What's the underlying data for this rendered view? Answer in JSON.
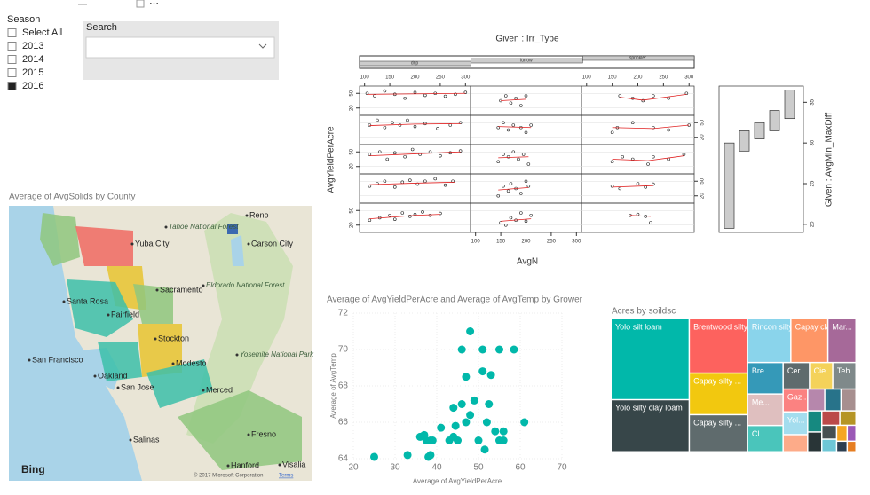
{
  "slicer": {
    "title": "Season",
    "items": [
      "Select All",
      "2013",
      "2014",
      "2015",
      "2016"
    ],
    "selected": [
      false,
      false,
      false,
      false,
      true
    ],
    "search": "Search"
  },
  "map": {
    "title": "Average of AvgSolids by County",
    "labels": [
      "Reno",
      "Tahoe National Forest",
      "Yuba City",
      "Carson City",
      "Sacramento",
      "Eldorado National Forest",
      "Santa Rosa",
      "Fairfield",
      "Stockton",
      "Yosemite National Park",
      "San Francisco",
      "Oakland",
      "Modesto",
      "San Jose",
      "Merced",
      "Salinas",
      "Fresno",
      "Hanford",
      "Visalia"
    ],
    "logo": "Bing",
    "attribution": "© 2017 Microsoft Corporation",
    "terms": "Terms"
  },
  "chart_data": [
    {
      "type": "scatter",
      "title": "Average of AvgYieldPerAcre and Average of AvgTemp by Grower",
      "xlabel": "Average of AvgYieldPerAcre",
      "ylabel": "Average of AvgTemp",
      "color": "#01b8aa",
      "xlim": [
        20,
        70
      ],
      "xticks": [
        20,
        30,
        40,
        50,
        60,
        70
      ],
      "ylim": [
        64,
        72
      ],
      "yticks": [
        64,
        66,
        68,
        70,
        72
      ],
      "x": [
        25,
        33,
        38,
        38.5,
        36,
        37.5,
        38.5,
        39,
        37,
        41,
        43,
        44,
        44.5,
        44,
        45,
        46,
        47,
        47,
        48,
        49,
        50,
        51,
        51,
        51.5,
        52,
        52.5,
        53,
        54,
        55,
        55,
        56,
        56,
        58.5,
        61,
        46,
        48
      ],
      "y": [
        64.1,
        64.2,
        64.1,
        64.2,
        65.2,
        65,
        65,
        65,
        65.3,
        65.7,
        65,
        65.2,
        65.8,
        66.8,
        65,
        67,
        66,
        68.5,
        71,
        67.2,
        65,
        68.8,
        70,
        64.5,
        66,
        67,
        68.6,
        65.5,
        70,
        65,
        65,
        65.5,
        70,
        66,
        70,
        66.4
      ]
    },
    {
      "type": "treemap",
      "title": "Acres by soildsc",
      "categories": [
        "Yolo silt loam",
        "Yolo silty clay loam",
        "Brentwood silty clay...",
        "Capay silty ...",
        "Capay silty ...",
        "Rincon silty...",
        "Capay clay",
        "Mar...",
        "Bre...",
        "Me...",
        "Cl...",
        "Cer...",
        "Cie...",
        "Teh...",
        "Gaz...",
        "Yol...",
        null,
        null,
        null,
        null,
        null,
        null,
        null,
        null,
        null,
        null,
        null,
        null,
        null,
        null
      ],
      "values": [
        679,
        437,
        340,
        260,
        232,
        203,
        174,
        132,
        120,
        120,
        100,
        75,
        66,
        66,
        60,
        60,
        45,
        40,
        38,
        35,
        32,
        30,
        28,
        25,
        22,
        20,
        18,
        15,
        12,
        10
      ],
      "colors": [
        "#01b8aa",
        "#374649",
        "#fd625e",
        "#f2c80f",
        "#5f6b6d",
        "#8ad4eb",
        "#fe9666",
        "#a66999",
        "#3599b8",
        "#dfbfbf",
        "#4ac5bb",
        "#5f6b6d",
        "#f4d25a",
        "#7f898a",
        "#fb8281",
        "#a4ddee",
        "#fdab89",
        "#b687ac",
        "#28738a",
        "#a78f8f",
        "#168980",
        "#293537",
        "#bb4a4a",
        "#b59525",
        "#475052",
        "#6ec7d6",
        "#f5a623",
        "#9b59b6",
        "#2c3e50",
        "#e67e22"
      ]
    },
    {
      "type": "coplot",
      "title": "Given : Irr_Type",
      "xlabel": "AvgN",
      "ylabel": "AvgYieldPerAcre",
      "given_label": "Given : AvgMin_MaxDiff",
      "columns": [
        "drip",
        "furrow",
        "sprinkler"
      ],
      "xlim": [
        90,
        310
      ],
      "xticks": [
        100,
        150,
        200,
        250,
        300
      ],
      "ylim": [
        5,
        65
      ],
      "yticks": [
        20,
        50
      ],
      "given_ylim": [
        19,
        37
      ],
      "given_yticks": [
        20,
        25,
        30,
        35
      ],
      "given_intervals": [
        [
          19.5,
          30
        ],
        [
          29,
          31.5
        ],
        [
          30.5,
          32.5
        ],
        [
          31.5,
          34
        ],
        [
          33,
          36.5
        ]
      ],
      "panels": [
        {
          "x": [
            110,
            130,
            150,
            160,
            175,
            190,
            200,
            215,
            230,
            250
          ],
          "y": [
            30,
            35,
            40,
            32,
            45,
            38,
            42,
            47,
            40,
            44
          ],
          "fit_x": [
            110,
            200,
            250
          ],
          "fit_y": [
            33,
            40,
            42
          ]
        },
        {
          "x": [
            150,
            160,
            170,
            180,
            190,
            200,
            210
          ],
          "y": [
            25,
            20,
            35,
            30,
            45,
            28,
            40
          ],
          "fit_x": [
            150,
            210
          ],
          "fit_y": [
            28,
            33
          ]
        },
        {
          "x": [
            185,
            200,
            215,
            225
          ],
          "y": [
            40,
            42,
            38,
            25
          ],
          "fit_x": [
            185,
            225
          ],
          "fit_y": [
            40,
            38
          ]
        },
        {
          "x": [
            110,
            125,
            140,
            160,
            175,
            190,
            205,
            220,
            240,
            260,
            275
          ],
          "y": [
            40,
            45,
            50,
            38,
            48,
            52,
            44,
            50,
            55,
            42,
            50
          ],
          "fit_x": [
            110,
            200,
            280
          ],
          "fit_y": [
            43,
            46,
            48
          ]
        },
        {
          "x": [
            145,
            155,
            165,
            170,
            180,
            190,
            200,
            205
          ],
          "y": [
            20,
            40,
            30,
            45,
            35,
            25,
            50,
            40
          ],
          "fit_x": [
            145,
            205
          ],
          "fit_y": [
            32,
            37
          ]
        },
        {
          "x": [
            150,
            165,
            200,
            215,
            230
          ],
          "y": [
            40,
            35,
            45,
            38,
            44
          ],
          "fit_x": [
            150,
            230
          ],
          "fit_y": [
            38,
            41
          ]
        },
        {
          "x": [
            110,
            130,
            145,
            160,
            180,
            195,
            210,
            230,
            250,
            270,
            290
          ],
          "y": [
            45,
            50,
            35,
            48,
            40,
            55,
            45,
            50,
            42,
            48,
            52
          ],
          "fit_x": [
            110,
            200,
            290
          ],
          "fit_y": [
            42,
            46,
            50
          ]
        },
        {
          "x": [
            145,
            155,
            165,
            175,
            185,
            195,
            205
          ],
          "y": [
            30,
            45,
            40,
            50,
            35,
            45,
            25
          ],
          "fit_x": [
            145,
            205
          ],
          "fit_y": [
            38,
            40
          ]
        },
        {
          "x": [
            150,
            170,
            190,
            220,
            230,
            260,
            290
          ],
          "y": [
            30,
            40,
            35,
            25,
            40,
            35,
            45
          ],
          "fit_x": [
            150,
            220,
            290
          ],
          "fit_y": [
            35,
            32,
            42
          ]
        },
        {
          "x": [
            110,
            125,
            140,
            155,
            170,
            185,
            200,
            220,
            245,
            270,
            290
          ],
          "y": [
            45,
            55,
            40,
            50,
            45,
            55,
            42,
            48,
            38,
            45,
            50
          ],
          "fit_x": [
            110,
            200,
            290
          ],
          "fit_y": [
            44,
            47,
            48
          ]
        },
        {
          "x": [
            145,
            155,
            165,
            175,
            190,
            200,
            210
          ],
          "y": [
            40,
            50,
            35,
            45,
            40,
            30,
            45
          ],
          "fit_x": [
            145,
            210
          ],
          "fit_y": [
            42,
            40
          ]
        },
        {
          "x": [
            150,
            160,
            190,
            230,
            260,
            300
          ],
          "y": [
            30,
            40,
            50,
            40,
            35,
            45
          ],
          "fit_x": [
            150,
            230,
            300
          ],
          "fit_y": [
            40,
            38,
            45
          ]
        },
        {
          "x": [
            105,
            120,
            140,
            160,
            180,
            200,
            220,
            240,
            260,
            280,
            300
          ],
          "y": [
            50,
            45,
            55,
            48,
            40,
            52,
            46,
            50,
            44,
            48,
            52
          ],
          "fit_x": [
            105,
            300
          ],
          "fit_y": [
            48,
            50
          ]
        },
        {
          "x": [
            150,
            160,
            170,
            180,
            190,
            200
          ],
          "y": [
            35,
            45,
            30,
            40,
            25,
            45
          ],
          "fit_x": [
            150,
            200
          ],
          "fit_y": [
            35,
            38
          ]
        },
        {
          "x": [
            165,
            190,
            210,
            230,
            260,
            295
          ],
          "y": [
            45,
            40,
            35,
            45,
            40,
            50
          ],
          "fit_x": [
            165,
            210,
            295
          ],
          "fit_y": [
            42,
            36,
            48
          ]
        }
      ]
    }
  ]
}
